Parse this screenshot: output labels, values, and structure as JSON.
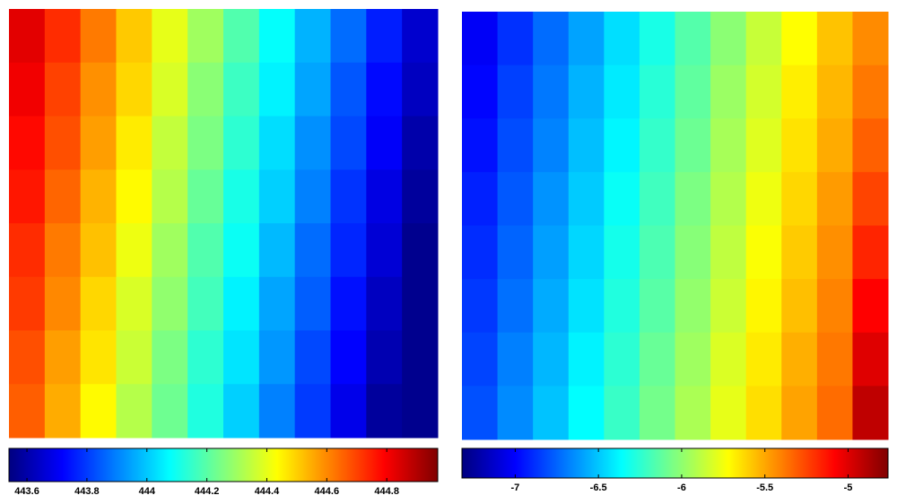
{
  "chart_data": [
    {
      "type": "heatmap",
      "colormap": "jet",
      "clim": [
        443.54,
        444.97
      ],
      "cticks": [
        443.6,
        443.8,
        444,
        444.2,
        444.4,
        444.6,
        444.8
      ],
      "z": [
        [
          444.83,
          444.73,
          444.62,
          444.51,
          444.4,
          444.3,
          444.19,
          444.08,
          443.97,
          443.87,
          443.76,
          443.65
        ],
        [
          444.81,
          444.7,
          444.59,
          444.49,
          444.38,
          444.27,
          444.16,
          444.06,
          443.95,
          443.84,
          443.73,
          443.63
        ],
        [
          444.78,
          444.68,
          444.57,
          444.46,
          444.35,
          444.25,
          444.14,
          444.03,
          443.92,
          443.82,
          443.71,
          443.6
        ],
        [
          444.76,
          444.65,
          444.54,
          444.44,
          444.33,
          444.22,
          444.11,
          444.01,
          443.9,
          443.79,
          443.68,
          443.58
        ],
        [
          444.73,
          444.62,
          444.52,
          444.41,
          444.3,
          444.19,
          444.09,
          443.98,
          443.87,
          443.77,
          443.66,
          443.56
        ],
        [
          444.71,
          444.6,
          444.49,
          444.38,
          444.28,
          444.17,
          444.06,
          443.95,
          443.85,
          443.74,
          443.63,
          443.56
        ],
        [
          444.68,
          444.57,
          444.47,
          444.36,
          444.25,
          444.14,
          444.04,
          443.93,
          443.82,
          443.72,
          443.61,
          443.56
        ],
        [
          444.66,
          444.55,
          444.44,
          444.33,
          444.23,
          444.12,
          444.01,
          443.9,
          443.8,
          443.69,
          443.58,
          443.56
        ]
      ]
    },
    {
      "type": "heatmap",
      "colormap": "jet",
      "clim": [
        -7.32,
        -4.76
      ],
      "cticks": [
        -7,
        -6.5,
        -6,
        -5.5,
        -5
      ],
      "z": [
        [
          -7.02,
          -6.88,
          -6.73,
          -6.59,
          -6.44,
          -6.3,
          -6.15,
          -6.01,
          -5.86,
          -5.72,
          -5.57,
          -5.43
        ],
        [
          -6.99,
          -6.84,
          -6.7,
          -6.55,
          -6.41,
          -6.26,
          -6.12,
          -5.97,
          -5.83,
          -5.68,
          -5.54,
          -5.38
        ],
        [
          -6.96,
          -6.81,
          -6.67,
          -6.52,
          -6.38,
          -6.23,
          -6.09,
          -5.94,
          -5.8,
          -5.65,
          -5.51,
          -5.32
        ],
        [
          -6.92,
          -6.78,
          -6.63,
          -6.49,
          -6.34,
          -6.2,
          -6.05,
          -5.91,
          -5.76,
          -5.62,
          -5.47,
          -5.25
        ],
        [
          -6.89,
          -6.75,
          -6.6,
          -6.46,
          -6.31,
          -6.17,
          -6.02,
          -5.88,
          -5.73,
          -5.59,
          -5.44,
          -5.17
        ],
        [
          -6.86,
          -6.72,
          -6.57,
          -6.43,
          -6.28,
          -6.14,
          -5.99,
          -5.85,
          -5.7,
          -5.56,
          -5.41,
          -5.08
        ],
        [
          -6.83,
          -6.68,
          -6.54,
          -6.39,
          -6.25,
          -6.1,
          -5.96,
          -5.81,
          -5.67,
          -5.52,
          -5.38,
          -5.0
        ],
        [
          -6.8,
          -6.65,
          -6.51,
          -6.36,
          -6.22,
          -6.07,
          -5.93,
          -5.78,
          -5.64,
          -5.49,
          -5.35,
          -4.92
        ]
      ]
    }
  ]
}
